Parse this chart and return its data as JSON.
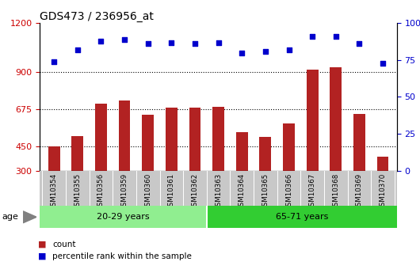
{
  "title": "GDS473 / 236956_at",
  "samples": [
    "GSM10354",
    "GSM10355",
    "GSM10356",
    "GSM10359",
    "GSM10360",
    "GSM10361",
    "GSM10362",
    "GSM10363",
    "GSM10364",
    "GSM10365",
    "GSM10366",
    "GSM10367",
    "GSM10368",
    "GSM10369",
    "GSM10370"
  ],
  "counts": [
    450,
    510,
    710,
    730,
    640,
    685,
    685,
    690,
    535,
    505,
    590,
    915,
    930,
    645,
    385
  ],
  "percentile_ranks": [
    74,
    82,
    88,
    89,
    86,
    87,
    86,
    87,
    80,
    81,
    82,
    91,
    91,
    86,
    73
  ],
  "group1_label": "20-29 years",
  "group2_label": "65-71 years",
  "group1_count": 7,
  "group2_count": 8,
  "ylim_left": [
    300,
    1200
  ],
  "ylim_right": [
    0,
    100
  ],
  "yticks_left": [
    300,
    450,
    675,
    900,
    1200
  ],
  "yticks_right": [
    0,
    25,
    50,
    75,
    100
  ],
  "bar_color": "#b22222",
  "dot_color": "#0000cc",
  "group1_color": "#90ee90",
  "group2_color": "#32cd32",
  "age_label": "age",
  "legend_count": "count",
  "legend_percentile": "percentile rank within the sample",
  "background_color": "#c8c8c8",
  "plot_bg_color": "#ffffff",
  "dotted_line_color": "#000000",
  "title_fontsize": 10,
  "tick_fontsize": 8,
  "right_tick_color": "#0000cc",
  "left_tick_color": "#cc0000"
}
